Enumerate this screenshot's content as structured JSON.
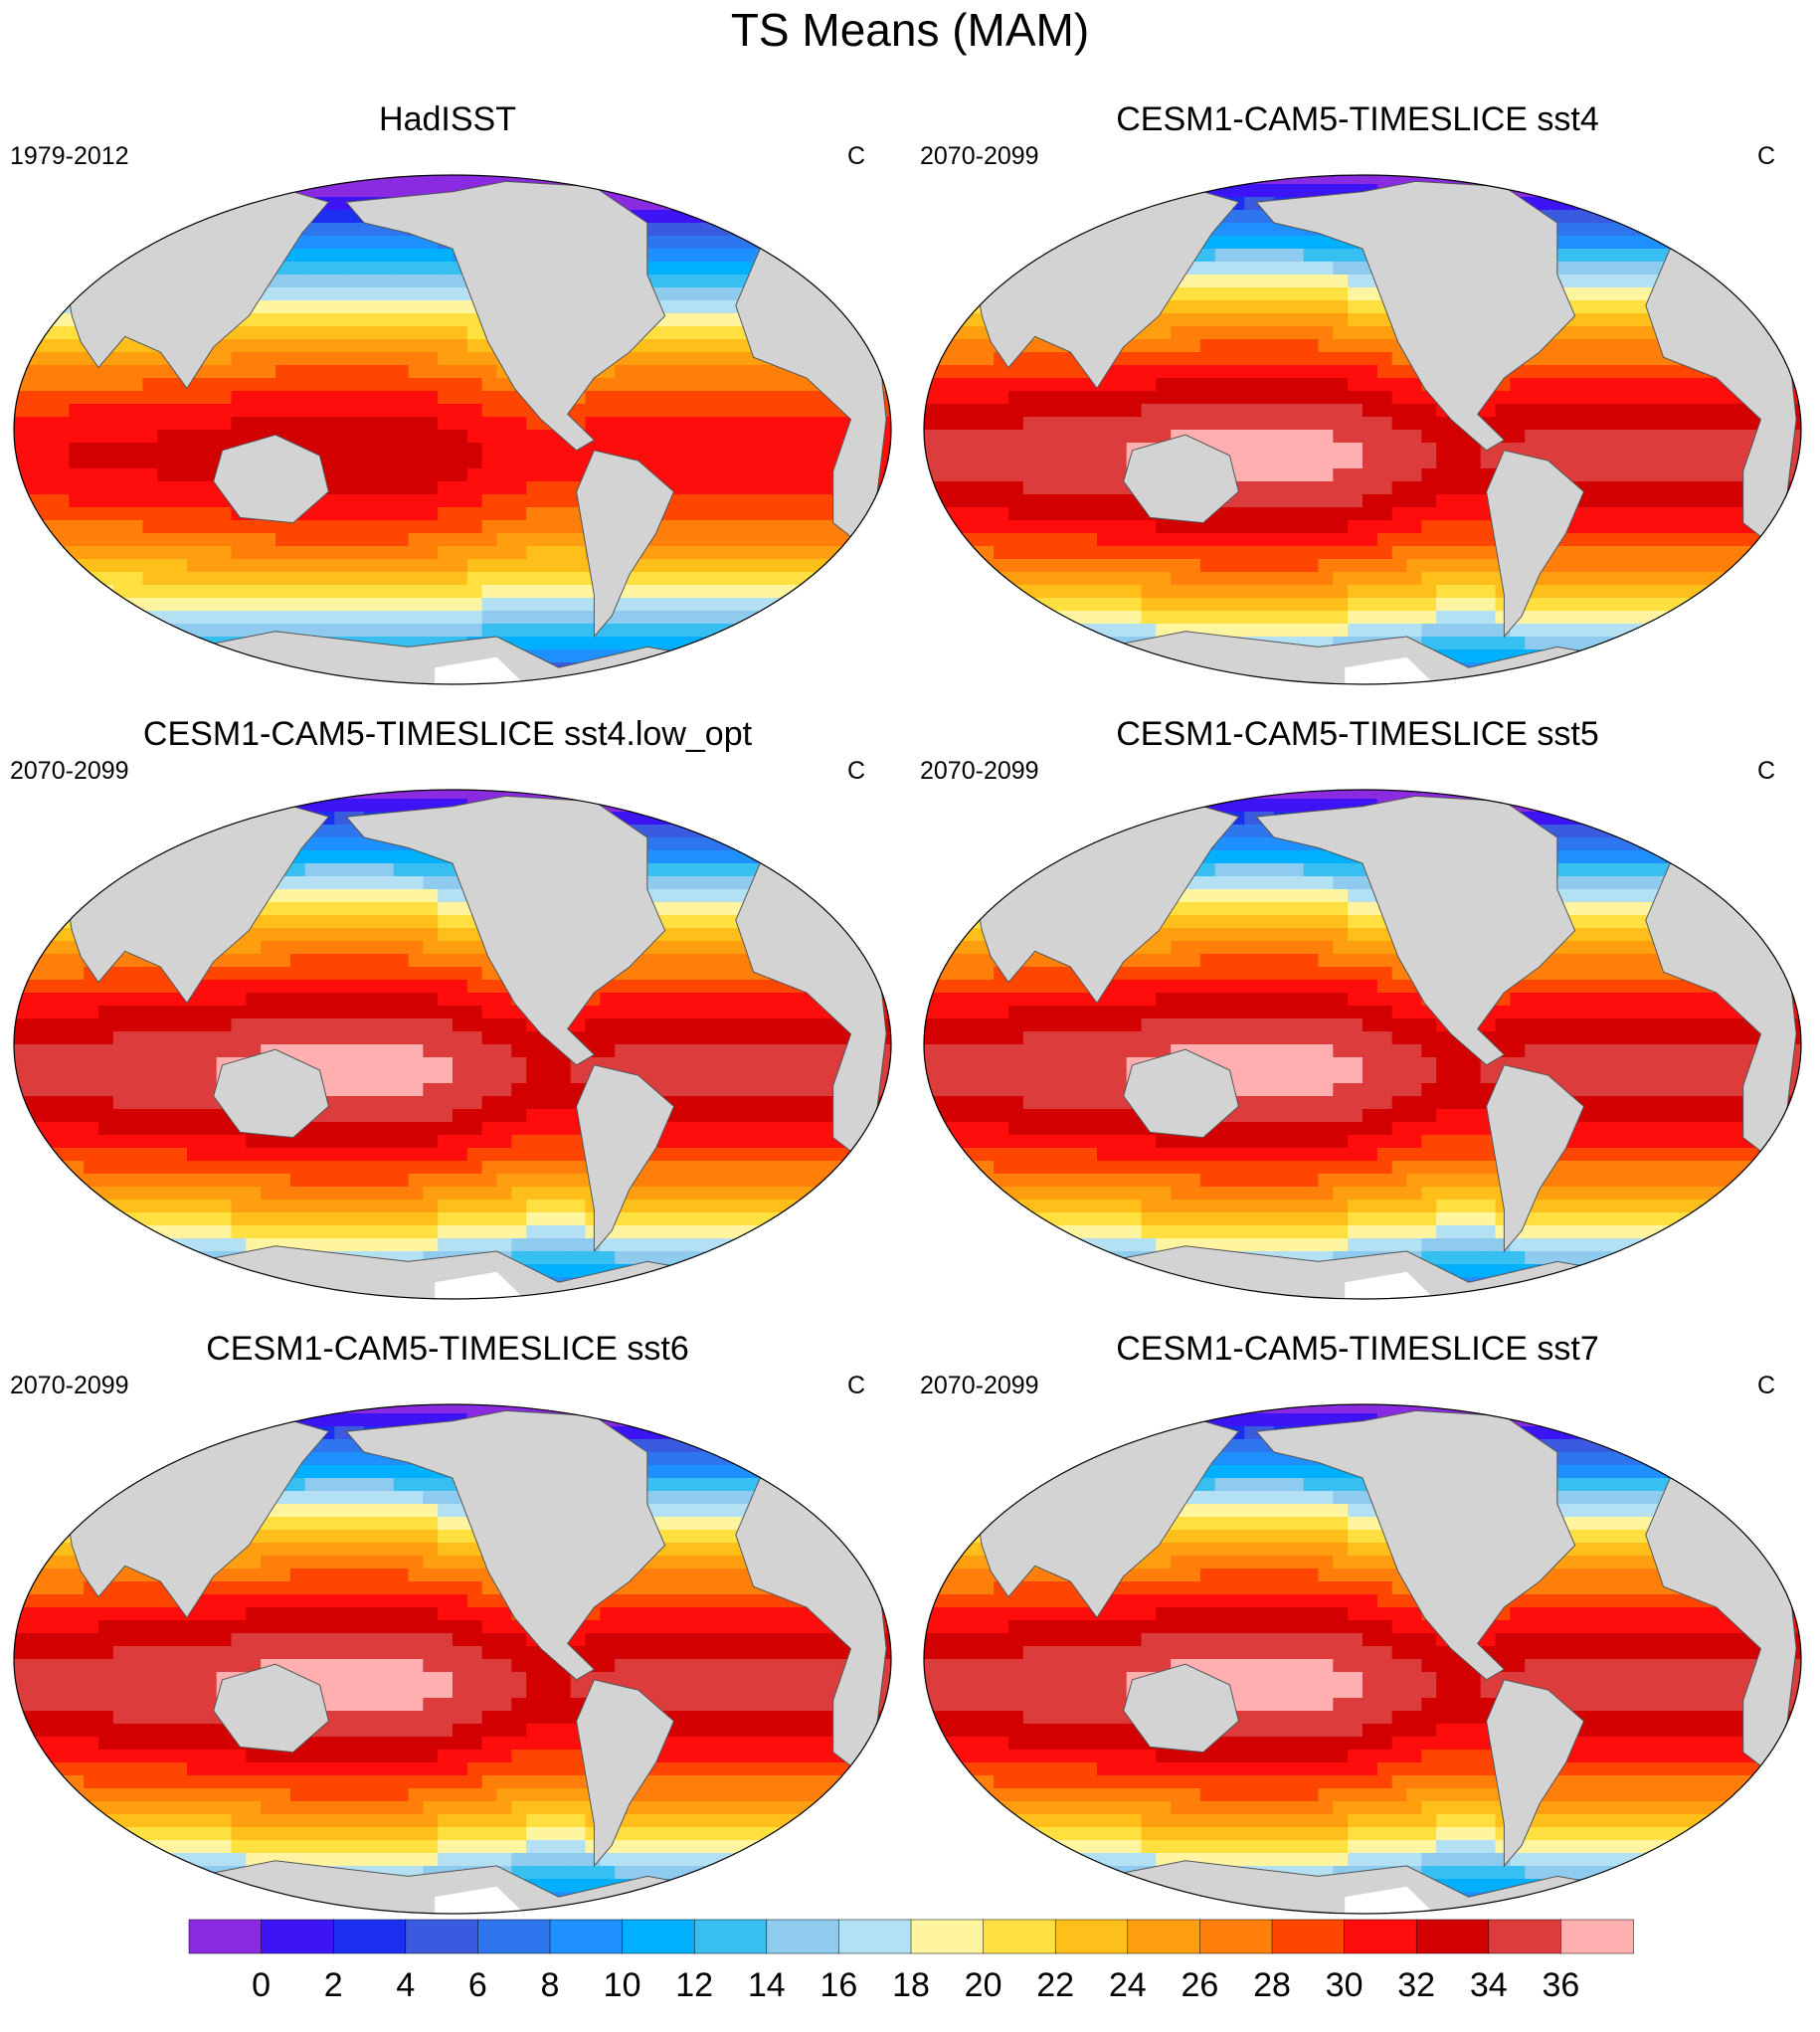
{
  "title": "TS Means (MAM)",
  "panels": [
    {
      "title": "HadISST",
      "period": "1979-2012",
      "units": "C",
      "warm_shift": 0
    },
    {
      "title": "CESM1-CAM5-TIMESLICE sst4",
      "period": "2070-2099",
      "units": "C",
      "warm_shift": 3
    },
    {
      "title": "CESM1-CAM5-TIMESLICE sst4.low_opt",
      "period": "2070-2099",
      "units": "C",
      "warm_shift": 3
    },
    {
      "title": "CESM1-CAM5-TIMESLICE sst5",
      "period": "2070-2099",
      "units": "C",
      "warm_shift": 3
    },
    {
      "title": "CESM1-CAM5-TIMESLICE sst6",
      "period": "2070-2099",
      "units": "C",
      "warm_shift": 3
    },
    {
      "title": "CESM1-CAM5-TIMESLICE sst7",
      "period": "2070-2099",
      "units": "C",
      "warm_shift": 3
    }
  ],
  "colorbar": {
    "labels": [
      "0",
      "2",
      "4",
      "6",
      "8",
      "10",
      "12",
      "14",
      "16",
      "18",
      "20",
      "22",
      "24",
      "26",
      "28",
      "30",
      "32",
      "34",
      "36"
    ],
    "colors": [
      "#8a2be2",
      "#3c14f5",
      "#1a2ff2",
      "#3a5be0",
      "#2e76ee",
      "#1e90ff",
      "#00b0ff",
      "#38bff2",
      "#8ecbee",
      "#b4e0f4",
      "#fff5a0",
      "#ffe040",
      "#ffbf1a",
      "#ff9f0f",
      "#ff7f0a",
      "#ff4600",
      "#ff0d0d",
      "#d20000",
      "#dc3c3c",
      "#ffafaf"
    ]
  },
  "land_color": "#d3d3d3",
  "ice_color": "#ffffff"
}
